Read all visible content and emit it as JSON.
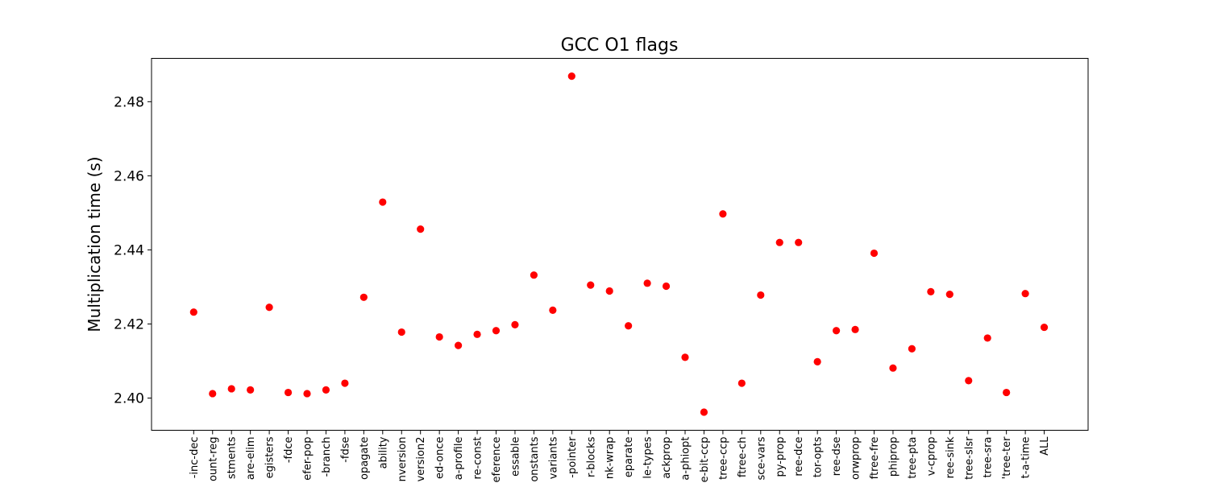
{
  "chart_data": {
    "type": "scatter",
    "title": "GCC O1 flags",
    "xlabel": "",
    "ylabel": "Multiplication time (s)",
    "ylim": [
      2.3913,
      2.4917
    ],
    "yticks": [
      2.4,
      2.42,
      2.44,
      2.46,
      2.48
    ],
    "ytick_labels": [
      "2.40",
      "2.42",
      "2.44",
      "2.46",
      "2.48"
    ],
    "grid": false,
    "legend": "none",
    "marker_color": "#ff0000",
    "categories": [
      "-inc-dec",
      "ount-reg",
      "stments",
      "are-elim",
      "egisters",
      "-fdce",
      "efer-pop",
      "-branch",
      "-fdse",
      "opagate",
      "ability",
      "nversion",
      "version2",
      "ed-once",
      "a-profile",
      "re-const",
      "eference",
      "essable",
      "onstants",
      "variants",
      "-pointer",
      "r-blocks",
      "nk-wrap",
      "eparate",
      "le-types",
      "ackprop",
      "a-phiopt",
      "e-bit-ccp",
      "tree-ccp",
      "ftree-ch",
      "sce-vars",
      "py-prop",
      "ree-dce",
      "tor-opts",
      "ree-dse",
      "orwprop",
      "ftree-fre",
      "phiprop",
      "tree-pta",
      "v-cprop",
      "ree-sink",
      "tree-slsr",
      "tree-sra",
      "'tree-ter",
      "t-a-time",
      "ALL"
    ],
    "values": [
      2.4232,
      2.4012,
      2.4025,
      2.4022,
      2.4245,
      2.4015,
      2.4012,
      2.4022,
      2.404,
      2.4272,
      2.4529,
      2.4178,
      2.4456,
      2.4165,
      2.4142,
      2.4172,
      2.4182,
      2.4198,
      2.4332,
      2.4237,
      2.4869,
      2.4305,
      2.4289,
      2.4195,
      2.431,
      2.4302,
      2.411,
      2.3962,
      2.4497,
      2.404,
      2.4278,
      2.442,
      2.442,
      2.4098,
      2.4182,
      2.4185,
      2.4391,
      2.4081,
      2.4133,
      2.4287,
      2.428,
      2.4047,
      2.4162,
      2.4015,
      2.4282,
      2.4191
    ]
  }
}
